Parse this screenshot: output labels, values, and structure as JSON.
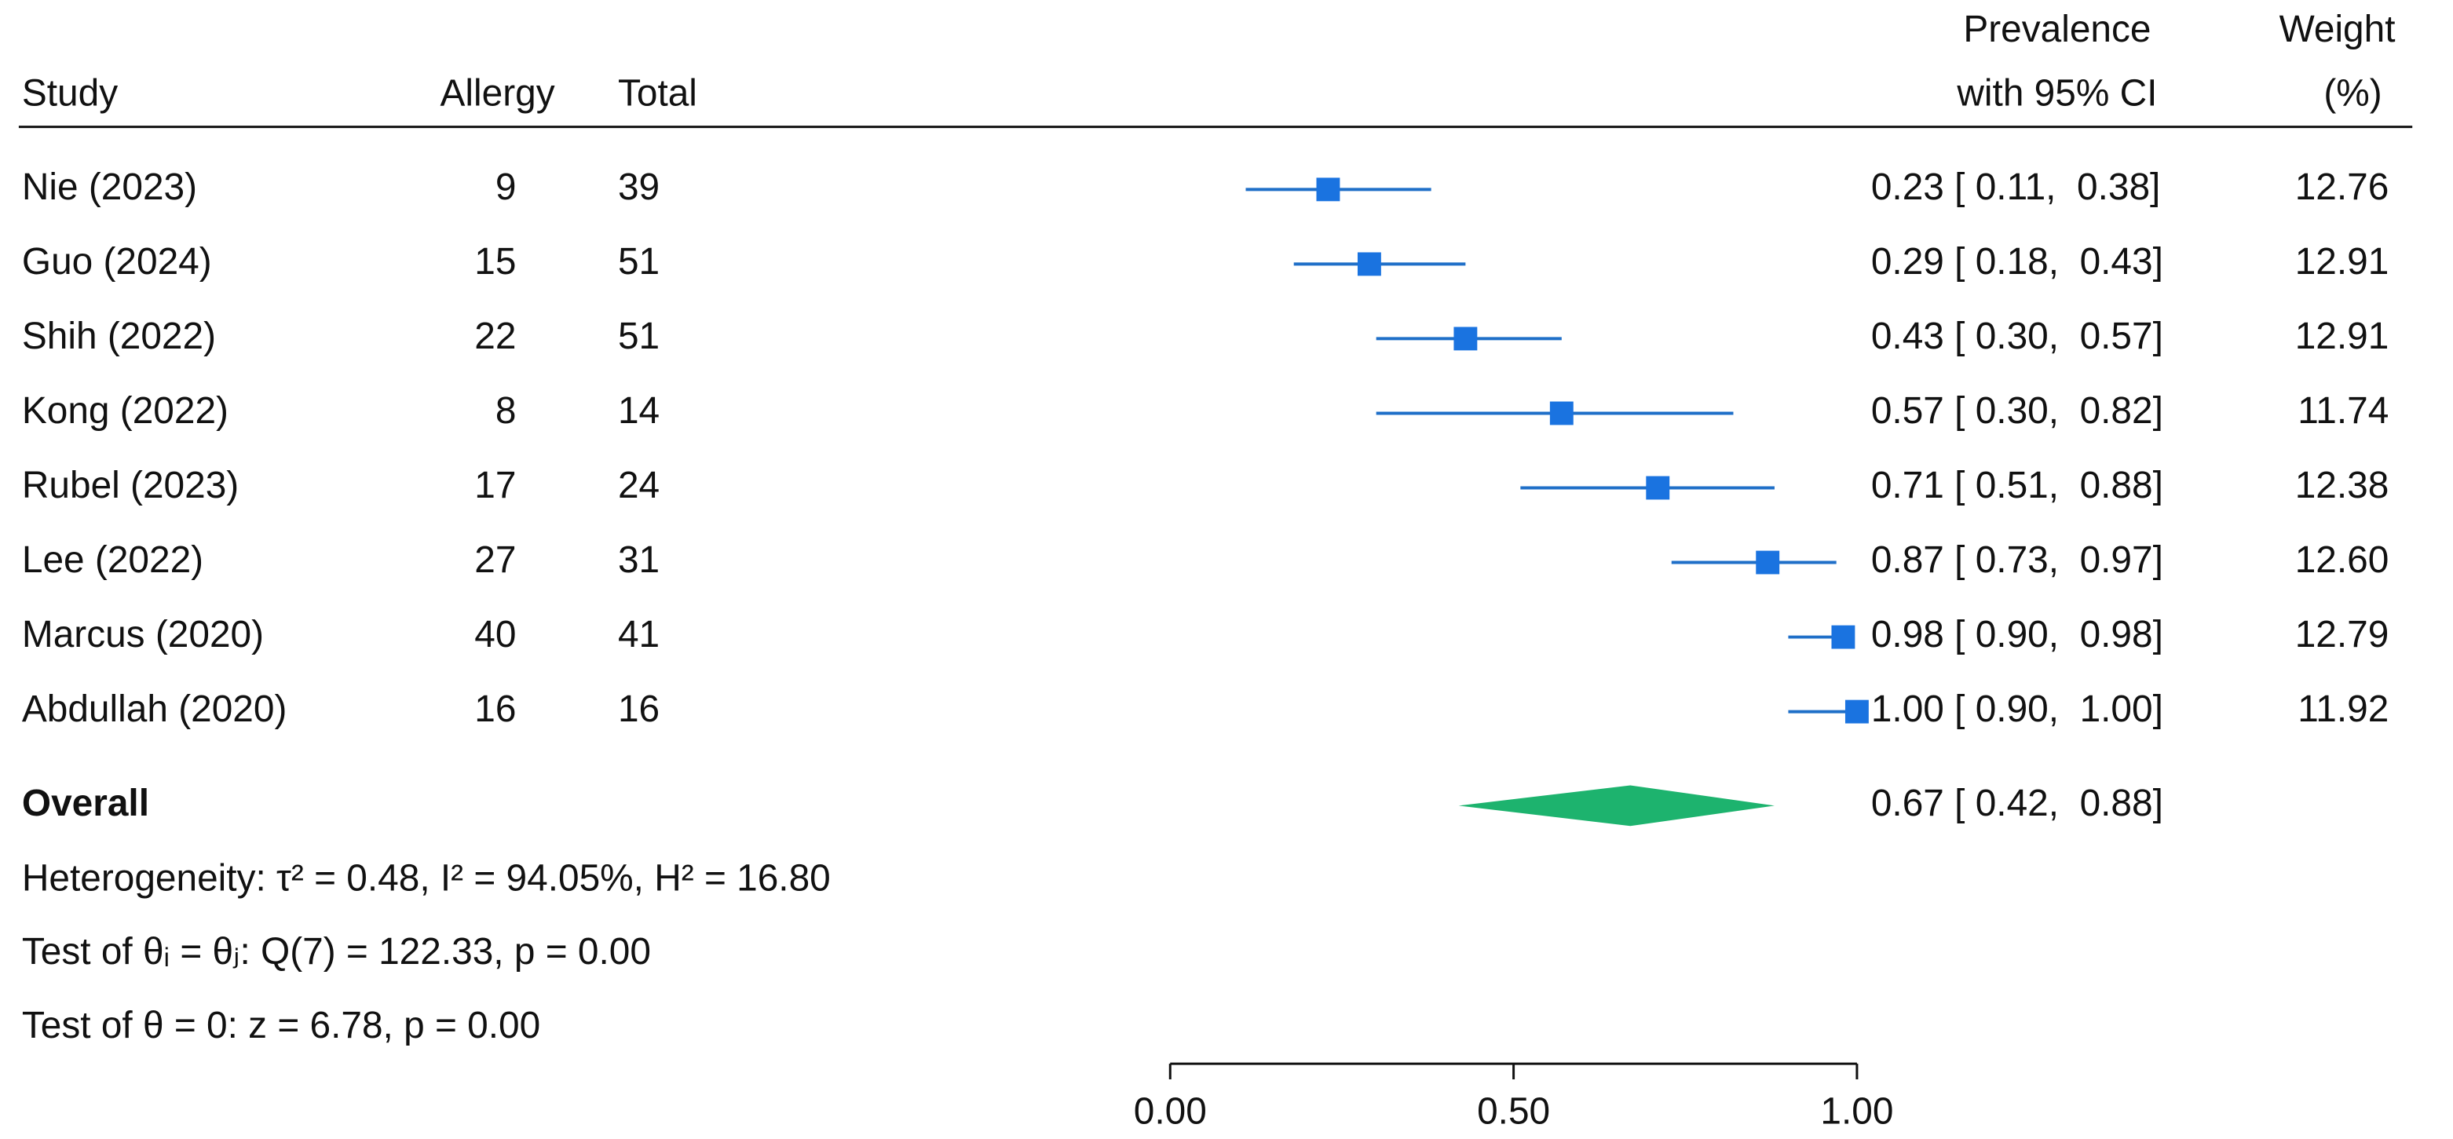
{
  "chart_data": {
    "type": "forest",
    "headers": {
      "study": "Study",
      "allergy": "Allergy",
      "total": "Total",
      "estimate_line1": "Prevalence",
      "estimate_line2": "with 95% CI",
      "weight_line1": "Weight",
      "weight_line2": "(%)"
    },
    "studies": [
      "Nie (2023)",
      "Guo (2024)",
      "Shih (2022)",
      "Kong (2022)",
      "Rubel (2023)",
      "Lee (2022)",
      "Marcus (2020)",
      "Abdullah (2020)"
    ],
    "allergy": [
      9,
      15,
      22,
      8,
      17,
      27,
      40,
      16
    ],
    "total": [
      39,
      51,
      51,
      14,
      24,
      31,
      41,
      16
    ],
    "estimate": [
      0.23,
      0.29,
      0.43,
      0.57,
      0.71,
      0.87,
      0.98,
      1.0
    ],
    "lower": [
      0.11,
      0.18,
      0.3,
      0.3,
      0.51,
      0.73,
      0.9,
      0.9
    ],
    "upper": [
      0.38,
      0.43,
      0.57,
      0.82,
      0.88,
      0.97,
      0.98,
      1.0
    ],
    "value_labels": [
      "0.23 [ 0.11,  0.38]",
      "0.29 [ 0.18,  0.43]",
      "0.43 [ 0.30,  0.57]",
      "0.57 [ 0.30,  0.82]",
      "0.71 [ 0.51,  0.88]",
      "0.87 [ 0.73,  0.97]",
      "0.98 [ 0.90,  0.98]",
      "1.00 [ 0.90,  1.00]"
    ],
    "weight": [
      12.76,
      12.91,
      12.91,
      11.74,
      12.38,
      12.6,
      12.79,
      11.92
    ],
    "weight_labels": [
      "12.76",
      "12.91",
      "12.91",
      "11.74",
      "12.38",
      "12.60",
      "12.79",
      "11.92"
    ],
    "overall": {
      "name": "Overall",
      "estimate": 0.67,
      "lower": 0.42,
      "upper": 0.88,
      "value_label": "0.67 [ 0.42,  0.88]"
    },
    "notes": [
      "Heterogeneity: τ² = 0.48, I² = 94.05%, H² = 16.80",
      "Test of θᵢ = θⱼ: Q(7) = 122.33, p = 0.00",
      "Test of θ = 0: z = 6.78, p = 0.00"
    ],
    "xlim": [
      0,
      1
    ],
    "xticks": [
      {
        "value": 0,
        "label": "0.00"
      },
      {
        "value": 0.5,
        "label": "0.50"
      },
      {
        "value": 1,
        "label": "1.00"
      }
    ],
    "marker_color": "#1a73e0",
    "ci_color": "#1f6fc8",
    "diamond_color": "#1db36e"
  }
}
